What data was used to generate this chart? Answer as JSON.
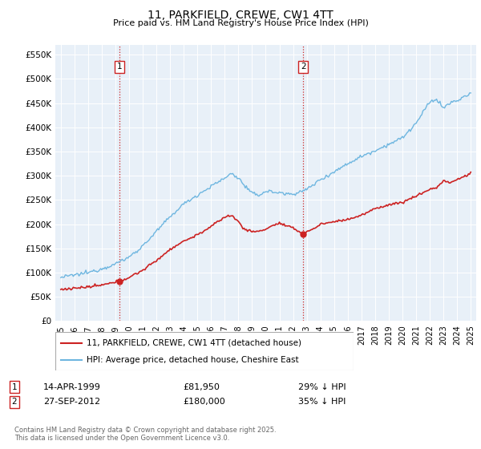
{
  "title": "11, PARKFIELD, CREWE, CW1 4TT",
  "subtitle": "Price paid vs. HM Land Registry's House Price Index (HPI)",
  "ylabel_ticks": [
    "£0",
    "£50K",
    "£100K",
    "£150K",
    "£200K",
    "£250K",
    "£300K",
    "£350K",
    "£400K",
    "£450K",
    "£500K",
    "£550K"
  ],
  "ytick_values": [
    0,
    50000,
    100000,
    150000,
    200000,
    250000,
    300000,
    350000,
    400000,
    450000,
    500000,
    550000
  ],
  "ylim": [
    0,
    570000
  ],
  "xlim_start": 1994.6,
  "xlim_end": 2025.4,
  "xticks": [
    1995,
    1996,
    1997,
    1998,
    1999,
    2000,
    2001,
    2002,
    2003,
    2004,
    2005,
    2006,
    2007,
    2008,
    2009,
    2010,
    2011,
    2012,
    2013,
    2014,
    2015,
    2016,
    2017,
    2018,
    2019,
    2020,
    2021,
    2022,
    2023,
    2024,
    2025
  ],
  "hpi_color": "#6eb6e0",
  "price_color": "#cc2222",
  "vline_color": "#cc2222",
  "sale1_year": 1999.28,
  "sale1_price": 81950,
  "sale1_label": "1",
  "sale2_year": 2012.74,
  "sale2_price": 180000,
  "sale2_label": "2",
  "legend_house_label": "11, PARKFIELD, CREWE, CW1 4TT (detached house)",
  "legend_hpi_label": "HPI: Average price, detached house, Cheshire East",
  "footer": "Contains HM Land Registry data © Crown copyright and database right 2025.\nThis data is licensed under the Open Government Licence v3.0.",
  "background_color": "#ffffff",
  "chart_bg_color": "#e8f0f8",
  "grid_color": "#ffffff"
}
